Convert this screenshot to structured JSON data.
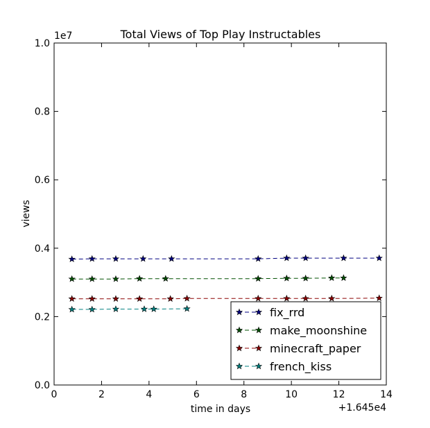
{
  "chart_data": {
    "type": "line",
    "title": "Total Views of Top Play Instructables",
    "xlabel": "time in days",
    "ylabel": "views",
    "x_offset_label": "+1.645e4",
    "y_scale_label": "1e7",
    "xlim": [
      0,
      14
    ],
    "ylim": [
      0.0,
      1.0
    ],
    "xticks": [
      0,
      2,
      4,
      6,
      8,
      10,
      12,
      14
    ],
    "yticks": [
      0.0,
      0.2,
      0.4,
      0.6,
      0.8,
      1.0
    ],
    "xtick_labels": [
      "0",
      "2",
      "4",
      "6",
      "8",
      "10",
      "12",
      "14"
    ],
    "ytick_labels": [
      "0.0",
      "0.2",
      "0.4",
      "0.6",
      "0.8",
      "1.0"
    ],
    "legend_position": "lower-right",
    "grid": false,
    "series": [
      {
        "name": "fix_rrd",
        "color": "#000080",
        "x": [
          0.75,
          1.6,
          2.6,
          3.75,
          4.95,
          8.6,
          9.8,
          10.6,
          12.2,
          13.7
        ],
        "y": [
          0.368,
          0.369,
          0.369,
          0.369,
          0.369,
          0.369,
          0.371,
          0.371,
          0.371,
          0.371
        ]
      },
      {
        "name": "make_moonshine",
        "color": "#005000",
        "x": [
          0.75,
          1.6,
          2.6,
          3.6,
          4.7,
          8.6,
          9.8,
          10.6,
          11.7,
          12.2
        ],
        "y": [
          0.31,
          0.31,
          0.31,
          0.311,
          0.311,
          0.311,
          0.312,
          0.312,
          0.313,
          0.313
        ]
      },
      {
        "name": "minecraft_paper",
        "color": "#8b0000",
        "x": [
          0.75,
          1.6,
          2.6,
          3.6,
          4.9,
          5.6,
          8.6,
          9.8,
          10.6,
          11.7,
          13.7
        ],
        "y": [
          0.252,
          0.252,
          0.252,
          0.252,
          0.252,
          0.253,
          0.253,
          0.253,
          0.253,
          0.253,
          0.254
        ]
      },
      {
        "name": "french_kiss",
        "color": "#008080",
        "x": [
          0.75,
          1.6,
          2.6,
          3.8,
          4.2,
          5.6
        ],
        "y": [
          0.221,
          0.221,
          0.222,
          0.222,
          0.222,
          0.223
        ]
      }
    ]
  }
}
